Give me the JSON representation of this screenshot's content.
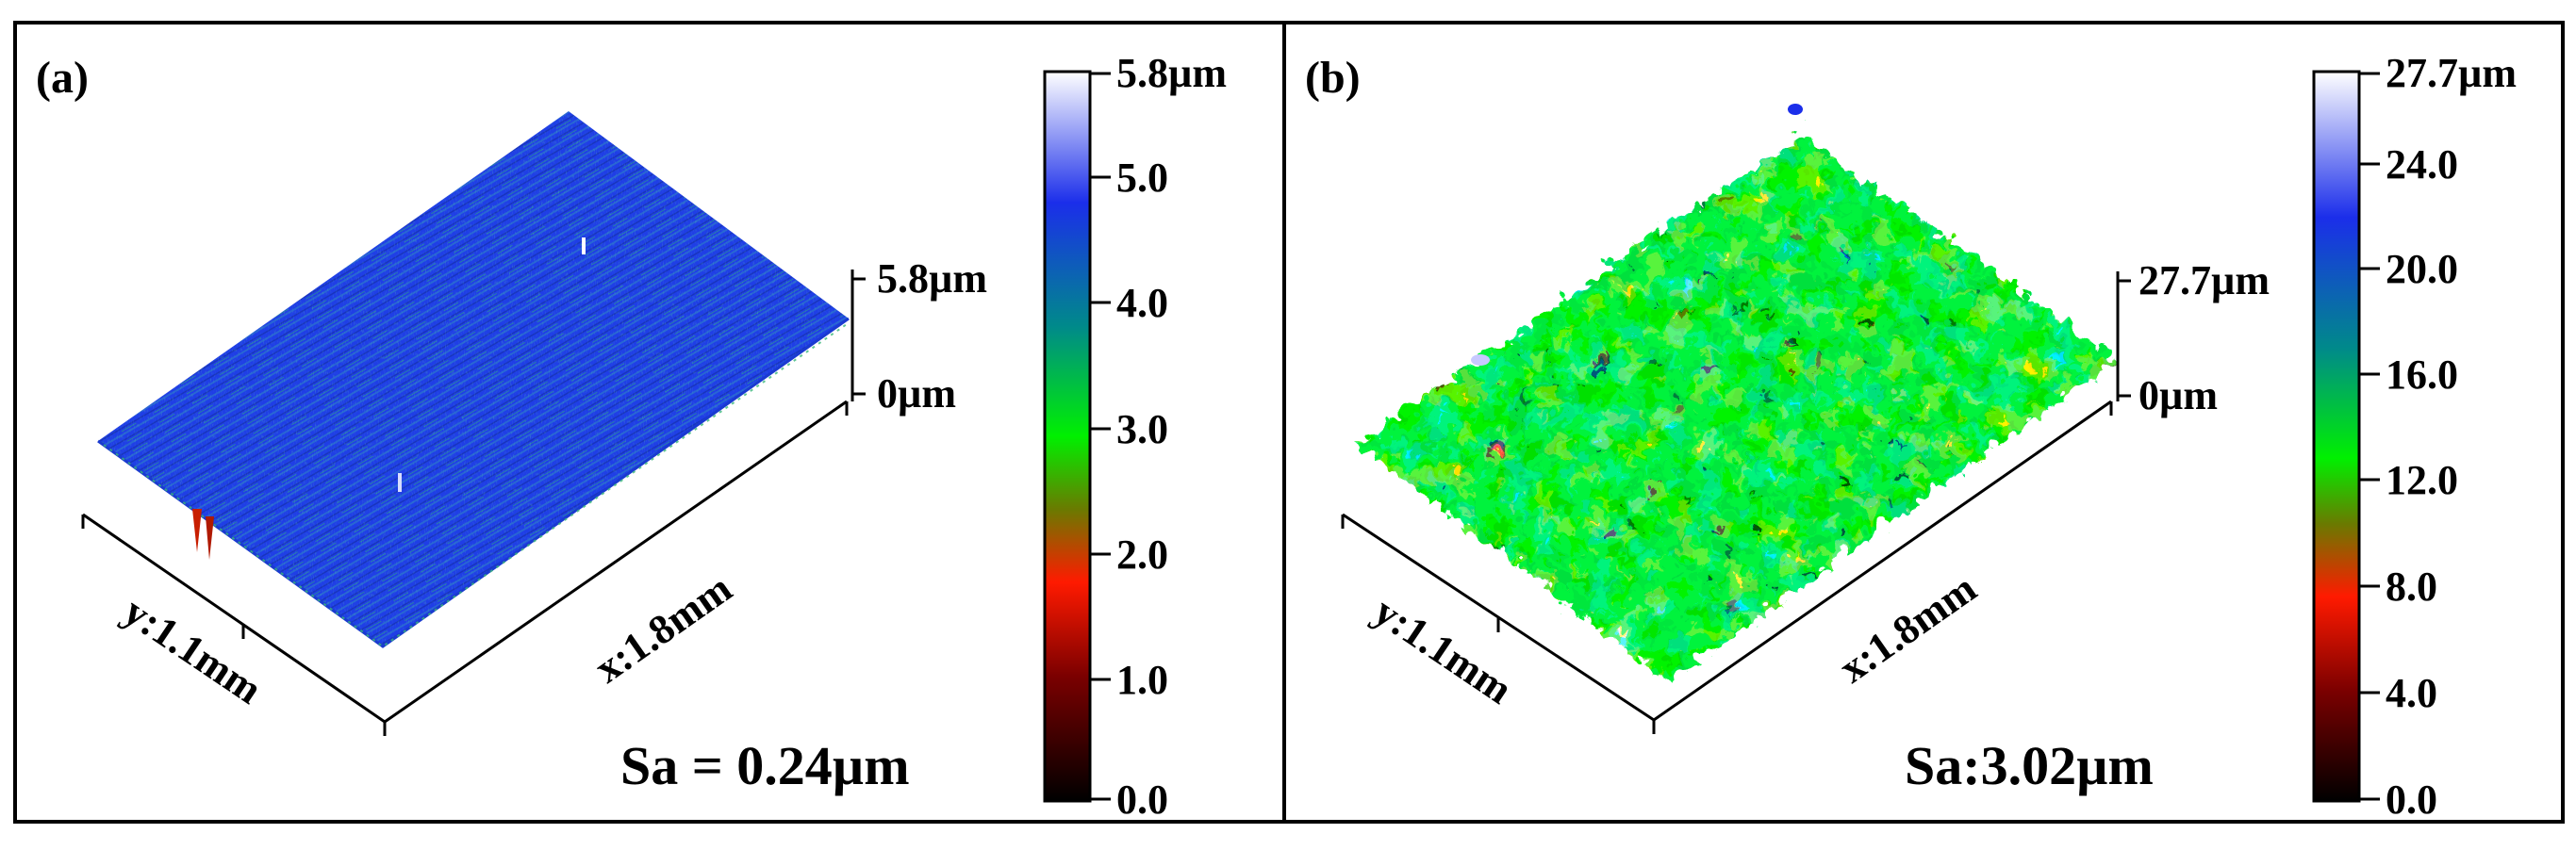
{
  "panels": [
    {
      "label": "(a)",
      "x_axis_label": "x:1.8mm",
      "y_axis_label": "y:1.1mm",
      "z_axis_top": "5.8µm",
      "z_axis_bottom": "0µm",
      "roughness": "Sa = 0.24µm",
      "colorbar_max_label": "5.8µm",
      "colorbar_ticks": [
        "5.0",
        "4.0",
        "3.0",
        "2.0",
        "1.0",
        "0.0"
      ],
      "colorbar_tick_values": [
        5.0,
        4.0,
        3.0,
        2.0,
        1.0,
        0.0
      ],
      "colorbar_range": [
        0,
        5.8
      ],
      "surface_dominant_color": "#1e3fe0"
    },
    {
      "label": "(b)",
      "x_axis_label": "x:1.8mm",
      "y_axis_label": "y:1.1mm",
      "z_axis_top": "27.7µm",
      "z_axis_bottom": "0µm",
      "roughness": "Sa:3.02µm",
      "colorbar_max_label": "27.7µm",
      "colorbar_ticks": [
        "24.0",
        "20.0",
        "16.0",
        "12.0",
        "8.0",
        "4.0",
        "0.0"
      ],
      "colorbar_tick_values": [
        24.0,
        20.0,
        16.0,
        12.0,
        8.0,
        4.0,
        0.0
      ],
      "colorbar_range": [
        0,
        27.7
      ],
      "surface_dominant_color": "#22c81e"
    }
  ],
  "colormap": [
    "#000000",
    "#7a0000",
    "#ff1a00",
    "#6a7a00",
    "#00f000",
    "#008a8a",
    "#1b2eea",
    "#ffffff"
  ]
}
